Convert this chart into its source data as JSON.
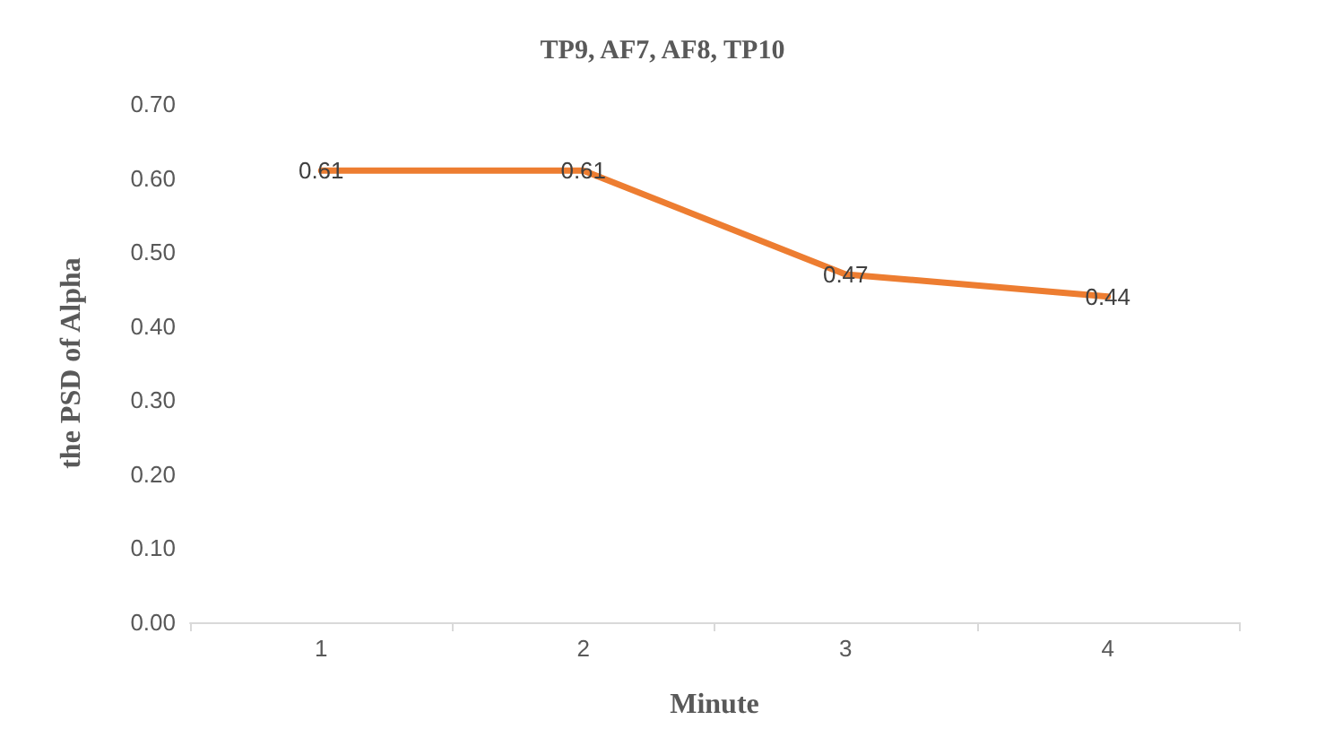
{
  "chart_data": {
    "type": "line",
    "title": "TP9, AF7, AF8, TP10",
    "xlabel": "Minute",
    "ylabel": "the PSD of Alpha",
    "categories": [
      "1",
      "2",
      "3",
      "4"
    ],
    "series": [
      {
        "color": "#ed7d31",
        "values": [
          0.61,
          0.61,
          0.47,
          0.44
        ]
      }
    ],
    "ylim": [
      0,
      0.7
    ],
    "yticks": [
      {
        "value": 0,
        "label": "0.00"
      },
      {
        "value": 0.1,
        "label": "0.10"
      },
      {
        "value": 0.2,
        "label": "0.20"
      },
      {
        "value": 0.3,
        "label": "0.30"
      },
      {
        "value": 0.4,
        "label": "0.40"
      },
      {
        "value": 0.5,
        "label": "0.50"
      },
      {
        "value": 0.6,
        "label": "0.60"
      },
      {
        "value": 0.7,
        "label": "0.70"
      }
    ],
    "grid": false,
    "marker": "none",
    "line_style": "solid",
    "data_labels": true
  }
}
